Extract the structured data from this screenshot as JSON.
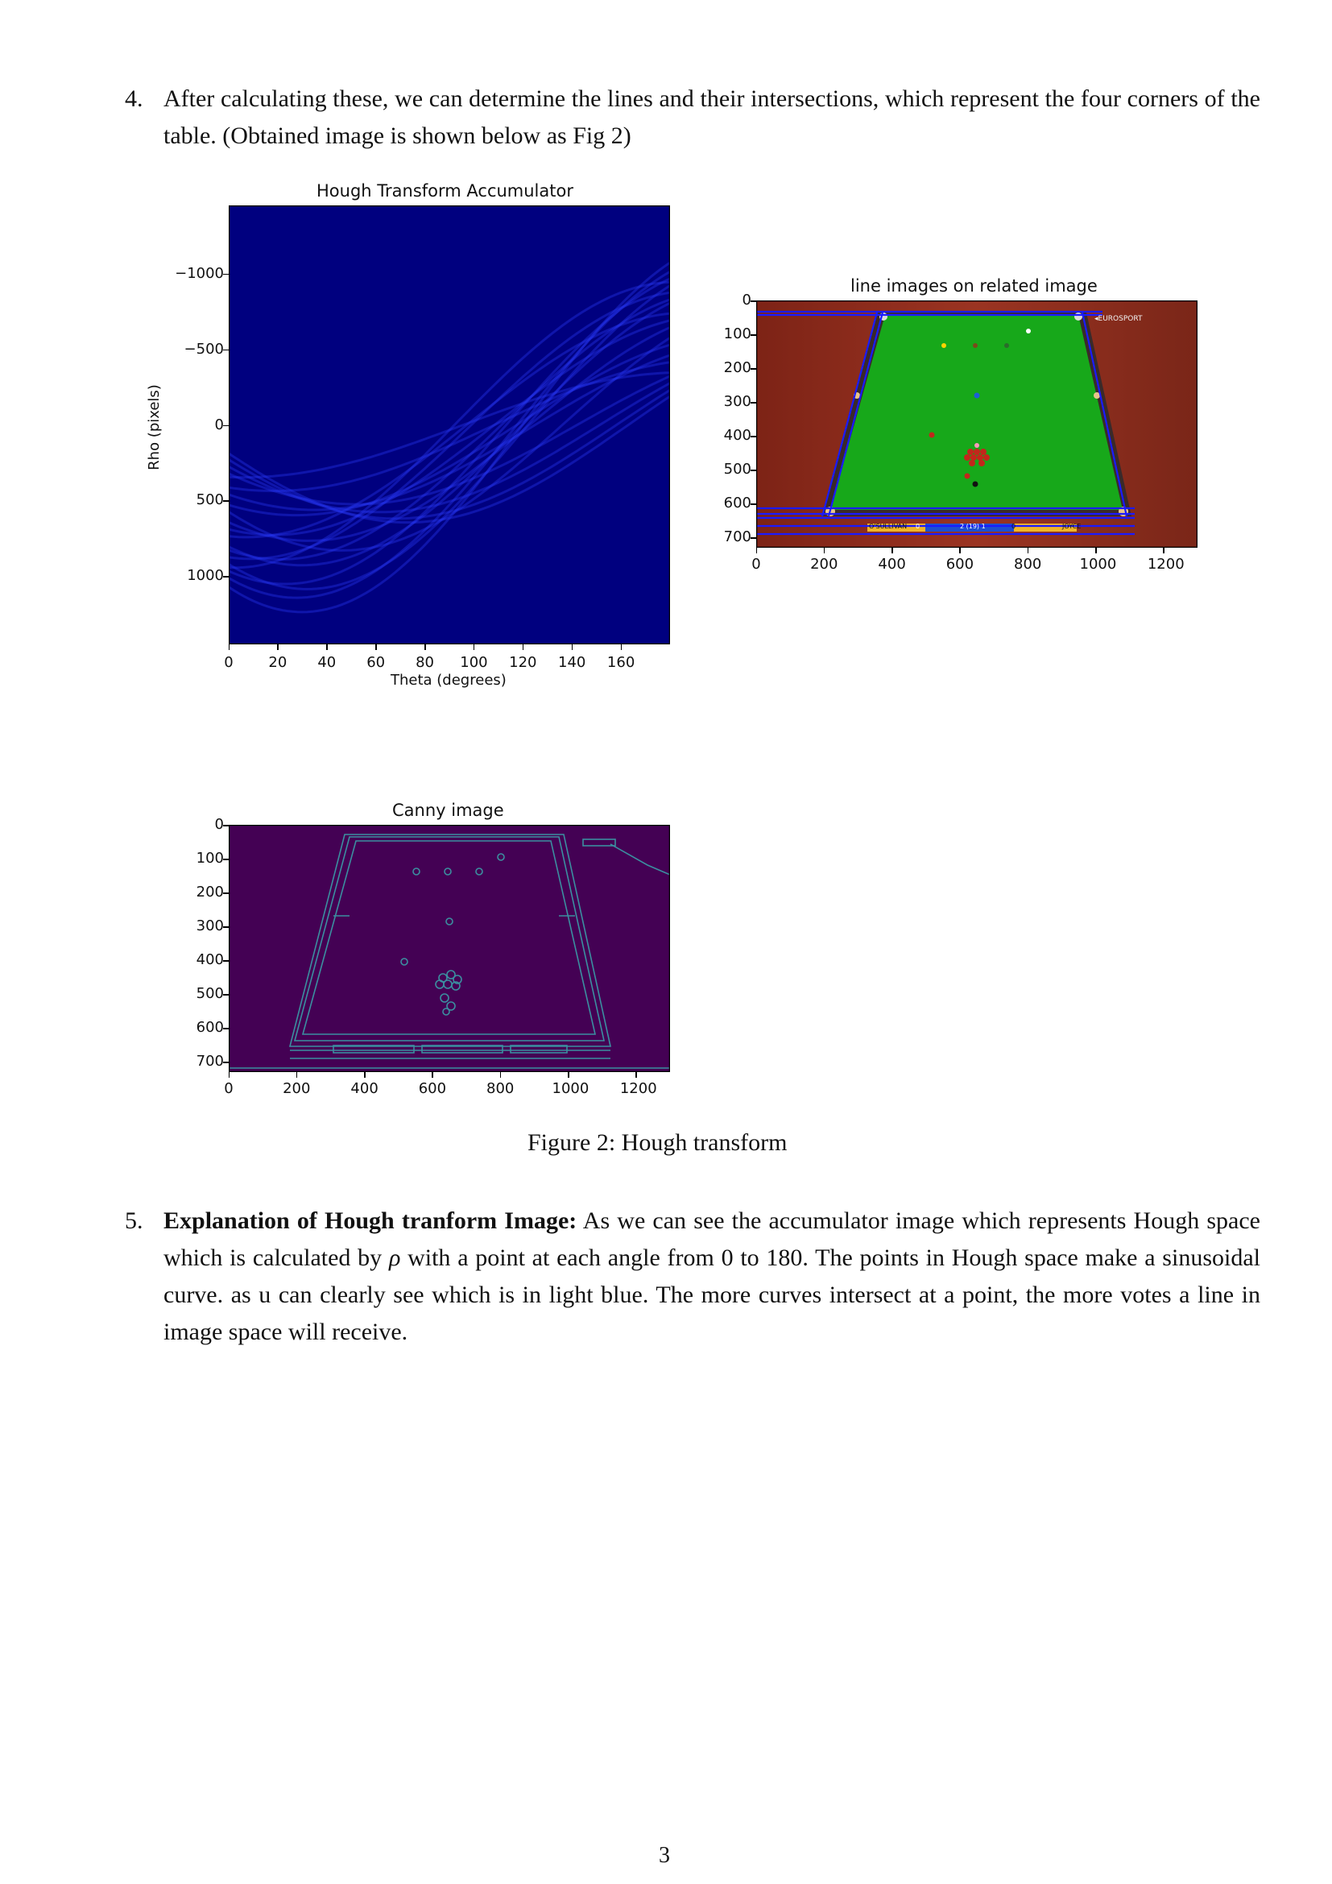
{
  "item4": {
    "number": "4.",
    "text": "After calculating these, we can determine the lines and their intersections, which represent the four corners of the table. (Obtained image is shown below as Fig 2)"
  },
  "hough_plot": {
    "title": "Hough Transform Accumulator",
    "xlabel": "Theta (degrees)",
    "ylabel": "Rho (pixels)",
    "xticks": [
      "0",
      "20",
      "40",
      "60",
      "80",
      "100",
      "120",
      "140",
      "160"
    ],
    "yticks": [
      "−1000",
      "−500",
      "0",
      "500",
      "1000"
    ],
    "bg_color": "#00007f",
    "curve_color": "#2a3cff"
  },
  "line_plot": {
    "title": "line images on related image",
    "xticks": [
      "0",
      "200",
      "400",
      "600",
      "800",
      "1000",
      "1200"
    ],
    "yticks": [
      "0",
      "100",
      "200",
      "300",
      "400",
      "500",
      "600",
      "700"
    ],
    "scoreboard": {
      "player1": "O'SULLIVAN",
      "score1": "0",
      "frames": "2  (19)  1",
      "score2": "0",
      "player2": "JOYCE"
    },
    "broadcaster": "◂EUROSPORT",
    "table_color": "#17a81a",
    "background_color": "#8c2a1e",
    "line_color": "#1a1aff"
  },
  "canny_plot": {
    "title": "Canny image",
    "xticks": [
      "0",
      "200",
      "400",
      "600",
      "800",
      "1000",
      "1200"
    ],
    "yticks": [
      "0",
      "100",
      "200",
      "300",
      "400",
      "500",
      "600",
      "700"
    ],
    "bg_color": "#440154",
    "edge_color": "#3b8fa0"
  },
  "caption": "Figure 2: Hough transform",
  "item5": {
    "number": "5.",
    "bold": "Explanation of Hough tranform Image:",
    "text_a": " As we can see the accumulator image which represents Hough space which is calculated by ",
    "rho": "ρ",
    "text_b": " with a point at each angle from 0 to 180. The points in Hough space make a sinusoidal curve. as u can clearly see which is in light blue. The more curves intersect at a point, the more votes a line in image space will receive."
  },
  "page_number": "3"
}
